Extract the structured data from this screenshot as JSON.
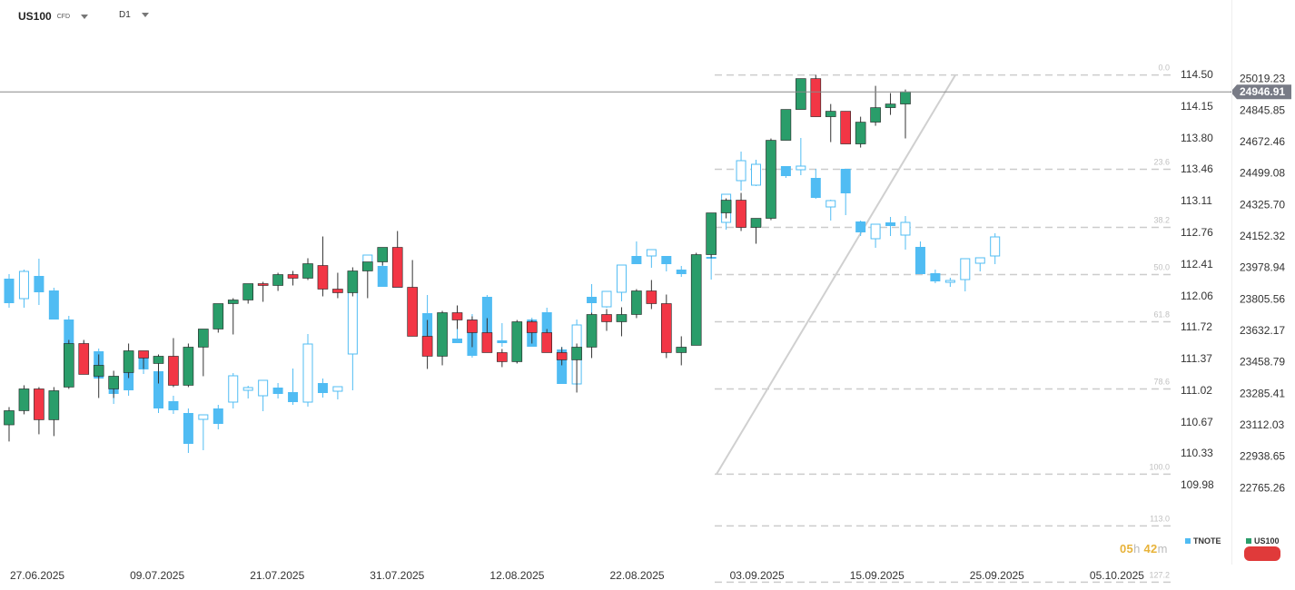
{
  "toolbar": {
    "symbol": "US100",
    "symbol_tag": "CFD",
    "timeframe": "D1"
  },
  "countdown": {
    "hours": "05",
    "h_unit": "h",
    "minutes": "42",
    "m_unit": "m"
  },
  "colors": {
    "up": "#2a9d6a",
    "down": "#f23645",
    "secondary": "#50bcf3",
    "fib": "#cccccc",
    "price_badge": "#787b86",
    "button": "#e03a3a"
  },
  "chart_data": {
    "type": "candlestick",
    "series": [
      {
        "name": "US100",
        "axis": "right-outer",
        "color_up": "#2a9d6a",
        "color_down": "#f23645"
      },
      {
        "name": "TNOTE",
        "axis": "right-inner",
        "color": "#50bcf3"
      }
    ],
    "current_price": "24946.91",
    "us100_axis_ticks": [
      "25019.23",
      "24845.85",
      "24672.46",
      "24499.08",
      "24325.70",
      "24152.32",
      "23978.94",
      "23805.56",
      "23632.17",
      "23458.79",
      "23285.41",
      "23112.03",
      "22938.65",
      "22765.26"
    ],
    "us100_ylim": [
      22592,
      25193
    ],
    "tnote_axis_ticks": [
      "114.50",
      "114.15",
      "113.80",
      "113.46",
      "113.11",
      "112.76",
      "112.41",
      "112.06",
      "111.72",
      "111.37",
      "111.02",
      "110.67",
      "110.33",
      "109.98"
    ],
    "tnote_ylim": [
      109.64,
      114.84
    ],
    "x_tick_labels": [
      "27.06.2025",
      "09.07.2025",
      "21.07.2025",
      "31.07.2025",
      "12.08.2025",
      "22.08.2025",
      "03.09.2025",
      "15.09.2025",
      "25.09.2025",
      "05.10.2025"
    ],
    "fibonacci": {
      "levels": [
        {
          "label": "0.0",
          "value": 25040
        },
        {
          "label": "23.6",
          "value": 24520
        },
        {
          "label": "38.2",
          "value": 24200
        },
        {
          "label": "50.0",
          "value": 23940
        },
        {
          "label": "61.8",
          "value": 23680
        },
        {
          "label": "78.6",
          "value": 23310
        },
        {
          "label": "100.0",
          "value": 22840
        },
        {
          "label": "113.0",
          "value": 22555
        },
        {
          "label": "127.2",
          "value": 22245
        }
      ],
      "anchor_low": 22840,
      "anchor_high": 25040
    },
    "us100_ohlc": [
      [
        23112,
        23210,
        23020,
        23190
      ],
      [
        23190,
        23330,
        23170,
        23310
      ],
      [
        23310,
        23320,
        23060,
        23140
      ],
      [
        23140,
        23320,
        23050,
        23300
      ],
      [
        23320,
        23580,
        23310,
        23560
      ],
      [
        23560,
        23580,
        23390,
        23390
      ],
      [
        23380,
        23500,
        23260,
        23440
      ],
      [
        23310,
        23410,
        23260,
        23380
      ],
      [
        23400,
        23560,
        23370,
        23520
      ],
      [
        23520,
        23510,
        23420,
        23480
      ],
      [
        23450,
        23500,
        23340,
        23490
      ],
      [
        23490,
        23590,
        23320,
        23330
      ],
      [
        23330,
        23560,
        23320,
        23540
      ],
      [
        23540,
        23630,
        23380,
        23640
      ],
      [
        23640,
        23760,
        23620,
        23780
      ],
      [
        23780,
        23810,
        23610,
        23800
      ],
      [
        23800,
        23890,
        23780,
        23890
      ],
      [
        23890,
        23900,
        23790,
        23880
      ],
      [
        23880,
        23950,
        23850,
        23940
      ],
      [
        23940,
        23960,
        23880,
        23920
      ],
      [
        23920,
        24030,
        23910,
        24000
      ],
      [
        23990,
        24150,
        23820,
        23860
      ],
      [
        23860,
        23950,
        23810,
        23840
      ],
      [
        23840,
        23980,
        23820,
        23960
      ],
      [
        23960,
        24010,
        23810,
        24010
      ],
      [
        24010,
        24090,
        23990,
        24090
      ],
      [
        24090,
        24180,
        23870,
        23870
      ],
      [
        23870,
        24020,
        23740,
        23600
      ],
      [
        23600,
        23690,
        23420,
        23490
      ],
      [
        23490,
        23740,
        23440,
        23730
      ],
      [
        23730,
        23770,
        23640,
        23690
      ],
      [
        23690,
        23710,
        23540,
        23620
      ],
      [
        23620,
        23700,
        23520,
        23510
      ],
      [
        23510,
        23530,
        23430,
        23460
      ],
      [
        23460,
        23690,
        23450,
        23680
      ],
      [
        23680,
        23690,
        23560,
        23620
      ],
      [
        23620,
        23640,
        23520,
        23510
      ],
      [
        23510,
        23540,
        23440,
        23470
      ],
      [
        23470,
        23560,
        23290,
        23540
      ],
      [
        23540,
        23730,
        23480,
        23720
      ],
      [
        23720,
        23750,
        23630,
        23680
      ],
      [
        23680,
        23760,
        23600,
        23720
      ],
      [
        23720,
        23860,
        23700,
        23850
      ],
      [
        23850,
        23910,
        23750,
        23780
      ],
      [
        23780,
        23830,
        23480,
        23510
      ],
      [
        23510,
        23600,
        23440,
        23540
      ],
      [
        23550,
        24060,
        23560,
        24050
      ],
      [
        24050,
        24280,
        24030,
        24280
      ],
      [
        24280,
        24360,
        24250,
        24350
      ],
      [
        24350,
        24390,
        24180,
        24200
      ],
      [
        24200,
        24240,
        24110,
        24250
      ],
      [
        24250,
        24690,
        24240,
        24680
      ],
      [
        24680,
        24850,
        24680,
        24850
      ],
      [
        24850,
        24970,
        24850,
        25020
      ],
      [
        25020,
        25040,
        24810,
        24810
      ],
      [
        24810,
        24880,
        24670,
        24840
      ],
      [
        24840,
        24820,
        24660,
        24660
      ],
      [
        24660,
        24810,
        24640,
        24780
      ],
      [
        24780,
        24980,
        24760,
        24860
      ],
      [
        24860,
        24940,
        24820,
        24880
      ],
      [
        24880,
        24960,
        24690,
        24946.91
      ]
    ],
    "tnote_ohlc": [
      [
        112.25,
        112.3,
        111.93,
        111.98
      ],
      [
        112.03,
        112.35,
        111.93,
        112.33
      ],
      [
        112.28,
        112.47,
        111.96,
        112.1
      ],
      [
        112.12,
        112.15,
        111.84,
        111.8
      ],
      [
        111.8,
        111.84,
        111.34,
        111.42
      ],
      [
        111.38,
        111.56,
        111.34,
        111.46
      ],
      [
        111.45,
        111.48,
        111.16,
        111.15
      ],
      [
        111.1,
        111.12,
        110.87,
        110.98
      ],
      [
        111.39,
        111.4,
        110.96,
        111.02
      ],
      [
        111.39,
        111.33,
        111.2,
        111.25
      ],
      [
        111.23,
        111.25,
        110.77,
        110.82
      ],
      [
        110.9,
        110.96,
        110.76,
        110.8
      ],
      [
        110.77,
        110.82,
        110.33,
        110.43
      ],
      [
        110.7,
        110.71,
        110.36,
        110.75
      ],
      [
        110.82,
        110.86,
        110.59,
        110.65
      ],
      [
        110.89,
        111.21,
        110.82,
        111.18
      ],
      [
        111.02,
        111.07,
        110.93,
        111.05
      ],
      [
        110.96,
        111.02,
        110.79,
        111.13
      ],
      [
        111.05,
        111.1,
        110.93,
        110.98
      ],
      [
        111.0,
        111.26,
        110.86,
        110.89
      ],
      [
        110.89,
        111.64,
        110.84,
        111.53
      ],
      [
        111.1,
        111.15,
        110.94,
        110.99
      ],
      [
        111.01,
        111.02,
        110.92,
        111.06
      ],
      [
        111.42,
        112.3,
        111.02,
        112.25
      ],
      [
        112.36,
        112.45,
        112.33,
        112.51
      ],
      [
        112.39,
        112.53,
        112.25,
        112.16
      ],
      [
        112.19,
        112.24,
        112.16,
        112.15
      ],
      [
        112.11,
        112.13,
        111.98,
        112.01
      ],
      [
        111.87,
        112.07,
        111.77,
        111.51
      ],
      [
        111.56,
        111.52,
        111.35,
        111.56
      ],
      [
        111.59,
        111.72,
        111.59,
        111.54
      ],
      [
        111.8,
        111.86,
        111.38,
        111.4
      ],
      [
        112.05,
        112.07,
        111.65,
        111.6
      ],
      [
        111.57,
        111.76,
        111.5,
        111.54
      ],
      [
        111.5,
        111.55,
        111.32,
        111.4
      ],
      [
        111.8,
        111.82,
        111.57,
        111.5
      ],
      [
        111.88,
        111.93,
        111.49,
        111.6
      ],
      [
        111.47,
        111.5,
        111.1,
        111.09
      ],
      [
        111.09,
        111.8,
        111.08,
        111.74
      ],
      [
        112.05,
        112.19,
        111.82,
        111.98
      ],
      [
        111.94,
        112.06,
        111.93,
        112.11
      ],
      [
        112.1,
        112.26,
        112.0,
        112.4
      ],
      [
        112.5,
        112.66,
        112.42,
        112.41
      ],
      [
        112.5,
        112.43,
        112.37,
        112.57
      ],
      [
        112.5,
        112.47,
        112.33,
        112.41
      ],
      [
        112.35,
        112.39,
        112.27,
        112.3
      ],
      [
        112.3,
        112.41,
        112.17,
        112.3
      ],
      [
        112.49,
        112.53,
        112.24,
        112.48
      ],
      [
        112.87,
        113.03,
        112.79,
        113.18
      ],
      [
        113.33,
        113.65,
        113.22,
        113.55
      ],
      [
        113.28,
        113.56,
        113.27,
        113.51
      ],
      [
        113.46,
        113.58,
        113.28,
        113.44
      ],
      [
        113.49,
        113.42,
        113.36,
        113.38
      ],
      [
        113.45,
        113.8,
        113.39,
        113.49
      ],
      [
        113.36,
        113.46,
        113.13,
        113.14
      ],
      [
        113.04,
        113.12,
        112.89,
        113.11
      ],
      [
        113.46,
        113.46,
        112.95,
        113.19
      ],
      [
        112.88,
        112.89,
        112.72,
        112.76
      ],
      [
        112.69,
        112.82,
        112.59,
        112.85
      ],
      [
        112.87,
        112.93,
        112.72,
        112.83
      ],
      [
        112.73,
        112.94,
        112.57,
        112.87
      ],
      [
        112.6,
        112.66,
        112.42,
        112.3
      ],
      [
        112.31,
        112.35,
        112.2,
        112.22
      ],
      [
        112.23,
        112.26,
        112.16,
        112.23
      ],
      [
        112.24,
        112.33,
        112.11,
        112.47
      ],
      [
        112.42,
        112.46,
        112.33,
        112.48
      ],
      [
        112.5,
        112.75,
        112.41,
        112.71
      ]
    ]
  }
}
